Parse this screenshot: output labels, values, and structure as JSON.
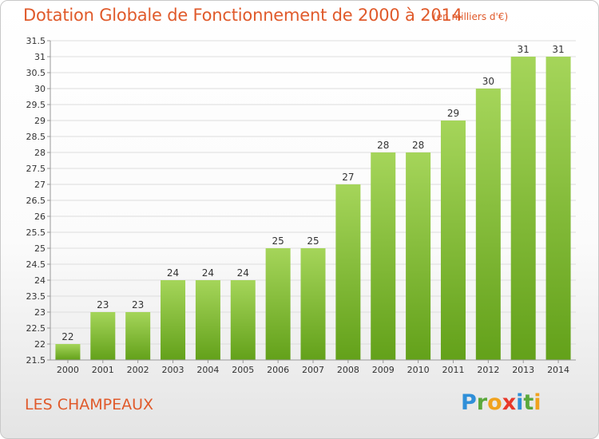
{
  "header": {
    "title": "Dotation Globale de Fonctionnement de 2000 à 2014",
    "unit": "(en milliers d'€)"
  },
  "footer": {
    "commune": "LES CHAMPEAUX",
    "logo": {
      "letters": [
        "P",
        "r",
        "o",
        "x",
        "i",
        "t",
        "i"
      ],
      "colors": [
        "#2f8fd8",
        "#5aa83c",
        "#f0a21e",
        "#e8382a",
        "#2f8fd8",
        "#5aa83c",
        "#f0a21e"
      ]
    }
  },
  "chart_data": {
    "type": "bar",
    "categories": [
      "2000",
      "2001",
      "2002",
      "2003",
      "2004",
      "2005",
      "2006",
      "2007",
      "2008",
      "2009",
      "2010",
      "2011",
      "2012",
      "2013",
      "2014"
    ],
    "values": [
      22,
      23,
      23,
      24,
      24,
      24,
      25,
      25,
      27,
      28,
      28,
      29,
      30,
      31,
      31
    ],
    "ylim": [
      21.5,
      31.5
    ],
    "yticks": [
      "21.5",
      "22",
      "22.5",
      "23",
      "23.5",
      "24",
      "24.5",
      "25",
      "25.5",
      "26",
      "26.5",
      "27",
      "27.5",
      "28",
      "28.5",
      "29",
      "29.5",
      "30",
      "30.5",
      "31",
      "31.5"
    ],
    "grid": true,
    "colors": {
      "bar_top": "#a5d55a",
      "bar_bottom": "#63a11a",
      "grid": "#dddddd",
      "axis": "#999999",
      "text": "#333333"
    }
  }
}
